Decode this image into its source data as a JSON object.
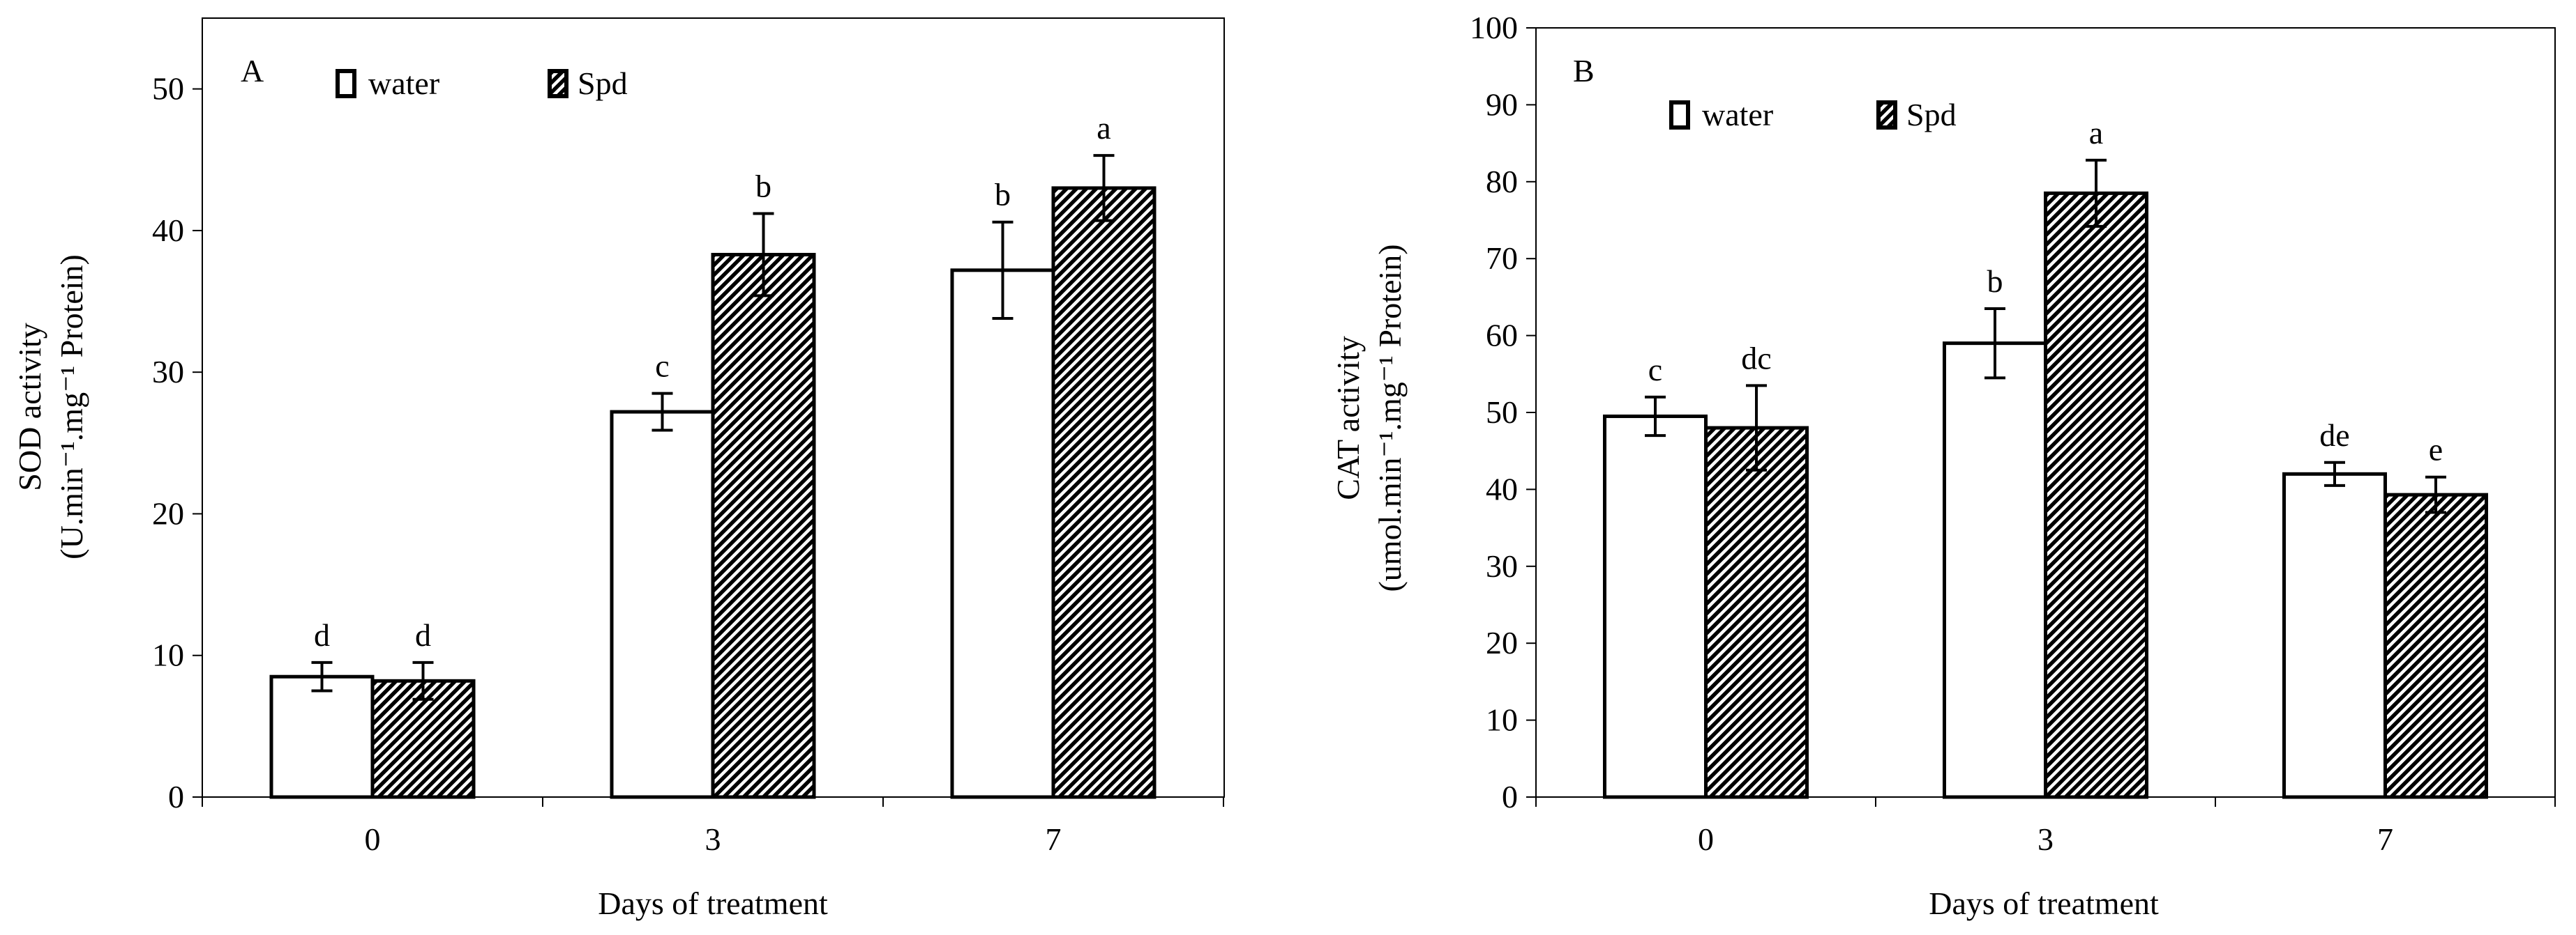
{
  "chart_data": [
    {
      "type": "bar",
      "panel_label": "A",
      "categories": [
        "0",
        "3",
        "7"
      ],
      "series": [
        {
          "name": "water",
          "values": [
            8.5,
            27.2,
            37.2
          ],
          "errors": [
            1.0,
            1.3,
            3.4
          ],
          "letters": [
            "d",
            "c",
            "b"
          ]
        },
        {
          "name": "Spd",
          "values": [
            8.2,
            38.3,
            43.0
          ],
          "errors": [
            1.3,
            2.9,
            2.3
          ],
          "letters": [
            "d",
            "b",
            "a"
          ]
        }
      ],
      "xlabel": "Days of treatment",
      "ylabel_line1": "SOD activity",
      "ylabel_line2": "(U.min⁻¹.mg⁻¹ Protein)",
      "ylim": [
        0,
        55
      ],
      "yticks": [
        "0",
        "10",
        "20",
        "30",
        "40",
        "50"
      ],
      "legend_position": "top-left"
    },
    {
      "type": "bar",
      "panel_label": "B",
      "categories": [
        "0",
        "3",
        "7"
      ],
      "series": [
        {
          "name": "water",
          "values": [
            49.5,
            59.0,
            42.0
          ],
          "errors": [
            2.5,
            4.5,
            1.5
          ],
          "letters": [
            "c",
            "b",
            "de"
          ]
        },
        {
          "name": "Spd",
          "values": [
            48.0,
            78.5,
            39.3
          ],
          "errors": [
            5.5,
            4.3,
            2.3
          ],
          "letters": [
            "dc",
            "a",
            "e"
          ]
        }
      ],
      "xlabel": "Days of treatment",
      "ylabel_line1": "CAT activity",
      "ylabel_line2": "(umol.min⁻¹.mg⁻¹ Protein)",
      "ylim": [
        0,
        100
      ],
      "yticks": [
        "0",
        "10",
        "20",
        "30",
        "40",
        "50",
        "60",
        "70",
        "80",
        "90",
        "100"
      ],
      "legend_position": "top-left"
    }
  ],
  "colors": {
    "water_fill": "#ffffff",
    "spd_pattern": "#000000",
    "axis": "#000000"
  }
}
